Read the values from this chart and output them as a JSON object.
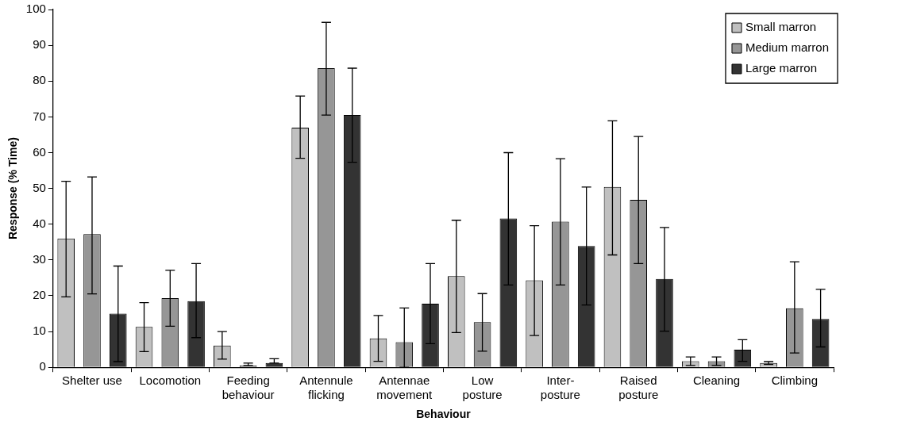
{
  "chart_data": {
    "type": "bar",
    "xlabel": "Behaviour",
    "ylabel": "Response (% Time)",
    "categories": [
      "Shelter use",
      "Locomotion",
      "Feeding\nbehaviour",
      "Antennule\nflicking",
      "Antennae\nmovement",
      "Low\nposture",
      "Inter-\nposture",
      "Raised\nposture",
      "Cleaning",
      "Climbing"
    ],
    "series": [
      {
        "name": "Small marron",
        "color": "#c0c0c0",
        "values": [
          36,
          11.3,
          6.1,
          67,
          8.1,
          25.5,
          24.3,
          50.4,
          1.7,
          1.2
        ],
        "errors": [
          [
            19.7,
            52
          ],
          [
            4.4,
            18.1
          ],
          [
            2.3,
            10
          ],
          [
            58.4,
            75.8
          ],
          [
            1.7,
            14.5
          ],
          [
            9.7,
            41.1
          ],
          [
            8.9,
            39.6
          ],
          [
            31.4,
            68.9
          ],
          [
            0.5,
            2.9
          ],
          [
            0.8,
            1.6
          ]
        ]
      },
      {
        "name": "Medium marron",
        "color": "#969696",
        "values": [
          37.2,
          19.3,
          0.5,
          83.6,
          7,
          12.6,
          40.7,
          46.8,
          1.7,
          16.5
        ],
        "errors": [
          [
            20.5,
            53.2
          ],
          [
            11.5,
            27.1
          ],
          [
            0.5,
            1.2
          ],
          [
            70.5,
            96.4
          ],
          [
            0,
            16.6
          ],
          [
            4.5,
            20.6
          ],
          [
            23,
            58.3
          ],
          [
            29,
            64.5
          ],
          [
            0.5,
            2.9
          ],
          [
            4,
            29.5
          ]
        ]
      },
      {
        "name": "Large marron",
        "color": "#333333",
        "values": [
          15,
          18.5,
          1.2,
          70.5,
          17.8,
          41.6,
          33.9,
          24.7,
          4.9,
          13.5
        ],
        "errors": [
          [
            1.6,
            28.3
          ],
          [
            8.3,
            29
          ],
          [
            1.2,
            2.4
          ],
          [
            57.3,
            83.6
          ],
          [
            6.6,
            29
          ],
          [
            23,
            60
          ],
          [
            17.4,
            50.4
          ],
          [
            10.1,
            39.1
          ],
          [
            1.7,
            7.7
          ],
          [
            5.7,
            21.8
          ]
        ]
      }
    ],
    "ylim": [
      0,
      100
    ],
    "yticks": [
      0,
      10,
      20,
      30,
      40,
      50,
      60,
      70,
      80,
      90,
      100
    ],
    "grid": false,
    "legend": "top right"
  }
}
